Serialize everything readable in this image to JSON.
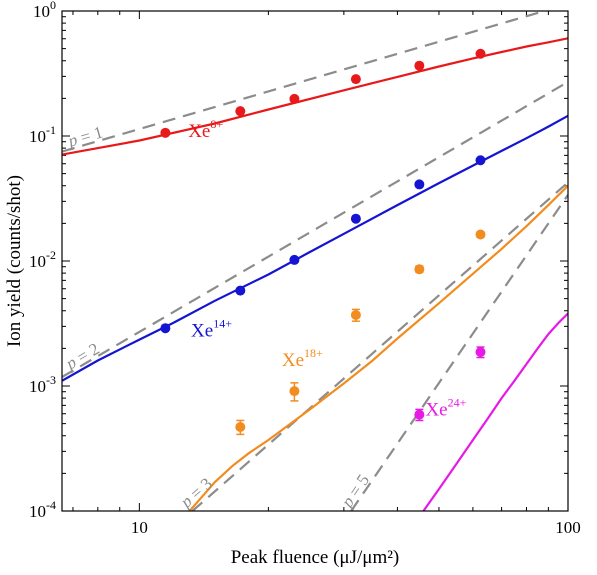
{
  "chart_data": {
    "type": "scatter",
    "xscale": "log",
    "yscale": "log",
    "xlim": [
      6.6,
      100
    ],
    "ylim": [
      0.0001,
      1
    ],
    "xlabel": "Peak fluence (μJ/μm²)",
    "ylabel": "Ion yield (counts/shot)",
    "x_tick_labels": [
      {
        "value": 10,
        "label": "10"
      },
      {
        "value": 100,
        "label": "100"
      }
    ],
    "y_tick_labels": [
      {
        "value": 0.0001,
        "base": "10",
        "exp": "-4"
      },
      {
        "value": 0.001,
        "base": "10",
        "exp": "-3"
      },
      {
        "value": 0.01,
        "base": "10",
        "exp": "-2"
      },
      {
        "value": 0.1,
        "base": "10",
        "exp": "-1"
      },
      {
        "value": 1,
        "base": "10",
        "exp": "0"
      }
    ],
    "series": [
      {
        "name": "Xe8+",
        "label_base": "Xe",
        "label_sup": "8+",
        "color": "#e8191b",
        "points": [
          [
            11.5,
            0.106
          ],
          [
            17.2,
            0.158
          ],
          [
            23.0,
            0.198
          ],
          [
            32.0,
            0.285
          ],
          [
            45.0,
            0.365
          ],
          [
            62.5,
            0.455
          ]
        ],
        "errors": [
          0,
          0,
          0,
          0,
          0,
          0
        ],
        "curve": [
          [
            6.6,
            0.071
          ],
          [
            10,
            0.092
          ],
          [
            15,
            0.126
          ],
          [
            20,
            0.163
          ],
          [
            30,
            0.232
          ],
          [
            40,
            0.297
          ],
          [
            50,
            0.36
          ],
          [
            60,
            0.418
          ],
          [
            70,
            0.47
          ],
          [
            80,
            0.52
          ],
          [
            90,
            0.562
          ],
          [
            100,
            0.605
          ]
        ],
        "label_at": [
          13.0,
          0.098
        ]
      },
      {
        "name": "Xe14+",
        "label_base": "Xe",
        "label_sup": "14+",
        "color": "#1414d2",
        "points": [
          [
            11.5,
            0.0029
          ],
          [
            17.2,
            0.0058
          ],
          [
            23.0,
            0.0102
          ],
          [
            32.0,
            0.0218
          ],
          [
            45.0,
            0.041
          ],
          [
            62.5,
            0.064
          ]
        ],
        "errors": [
          0,
          0,
          0,
          0,
          0,
          0
        ],
        "curve": [
          [
            6.6,
            0.0011
          ],
          [
            8,
            0.0016
          ],
          [
            10,
            0.00235
          ],
          [
            12,
            0.0032
          ],
          [
            15,
            0.0048
          ],
          [
            20,
            0.0078
          ],
          [
            25,
            0.0118
          ],
          [
            30,
            0.0165
          ],
          [
            40,
            0.028
          ],
          [
            50,
            0.042
          ],
          [
            60,
            0.058
          ],
          [
            70,
            0.076
          ],
          [
            80,
            0.096
          ],
          [
            90,
            0.119
          ],
          [
            100,
            0.145
          ]
        ],
        "label_at": [
          13.2,
          0.0025
        ]
      },
      {
        "name": "Xe18+",
        "label_base": "Xe",
        "label_sup": "18+",
        "color": "#f28c1e",
        "points": [
          [
            17.2,
            0.00047
          ],
          [
            23.0,
            0.00091
          ],
          [
            32.0,
            0.0037
          ],
          [
            45.0,
            0.0086
          ],
          [
            62.5,
            0.0163
          ]
        ],
        "errors": [
          6e-05,
          0.00015,
          0.0004,
          0.0005,
          0.0008
        ],
        "curve": [
          [
            13.1,
            0.0001
          ],
          [
            14,
            0.00013
          ],
          [
            15,
            0.00017
          ],
          [
            16.5,
            0.00023
          ],
          [
            18,
            0.00029
          ],
          [
            20,
            0.00037
          ],
          [
            25,
            0.00065
          ],
          [
            30,
            0.00105
          ],
          [
            35,
            0.0016
          ],
          [
            40,
            0.0024
          ],
          [
            50,
            0.0046
          ],
          [
            60,
            0.0079
          ],
          [
            70,
            0.0125
          ],
          [
            80,
            0.019
          ],
          [
            90,
            0.028
          ],
          [
            100,
            0.04
          ]
        ],
        "label_at": [
          21.5,
          0.00145
        ]
      },
      {
        "name": "Xe24+",
        "label_base": "Xe",
        "label_sup": "24+",
        "color": "#e619e6",
        "points": [
          [
            45.0,
            0.00059
          ],
          [
            62.5,
            0.00187
          ]
        ],
        "errors": [
          6e-05,
          0.00018
        ],
        "curve": [
          [
            46,
            0.0001
          ],
          [
            50,
            0.00015
          ],
          [
            55,
            0.00024
          ],
          [
            60,
            0.00037
          ],
          [
            65,
            0.00055
          ],
          [
            70,
            0.0008
          ],
          [
            75,
            0.0011
          ],
          [
            80,
            0.0015
          ],
          [
            85,
            0.002
          ],
          [
            90,
            0.0026
          ],
          [
            95,
            0.0032
          ],
          [
            100,
            0.0038
          ]
        ],
        "label_at": [
          46.5,
          0.00058
        ]
      }
    ],
    "reference_lines": [
      {
        "label_p": "p",
        "label_n": "1",
        "slope": 1,
        "x0": 6.6,
        "y0": 0.075,
        "color": "#8c8c8c",
        "dash": "dashed",
        "label_at": [
          6.9,
          0.082
        ]
      },
      {
        "label_p": "p",
        "label_n": "2",
        "slope": 2,
        "x0": 6.6,
        "y0": 0.00118,
        "color": "#8c8c8c",
        "dash": "dashed",
        "label_at": [
          6.9,
          0.00135
        ]
      },
      {
        "label_p": "p",
        "label_n": "3",
        "slope": 3,
        "x0": 13.3,
        "y0": 0.0001,
        "color": "#8c8c8c",
        "dash": "dashed",
        "label_at": [
          12.9,
          0.000105
        ]
      },
      {
        "label_p": "p",
        "label_n": "5",
        "slope": 5,
        "x0": 31.2,
        "y0": 0.0001,
        "color": "#8c8c8c",
        "dash": "dashed",
        "label_at": [
          31.0,
          0.000105
        ]
      }
    ]
  }
}
